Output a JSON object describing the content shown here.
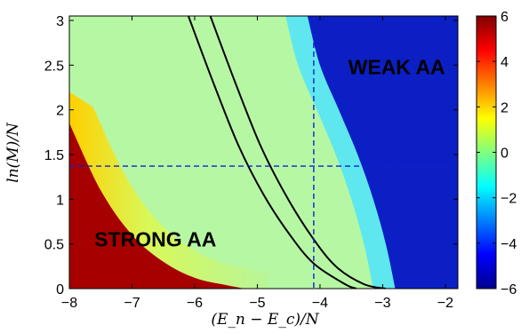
{
  "chart_data": {
    "type": "heatmap",
    "xlabel": "(E_n − E_c)/N",
    "ylabel": "ln(M)/N",
    "xlim": [
      -8,
      -1.8
    ],
    "ylim": [
      0,
      3.05
    ],
    "x_ticks": [
      "−8",
      "−7",
      "−6",
      "−5",
      "−4",
      "−3",
      "−2"
    ],
    "y_ticks": [
      "0",
      "0.5",
      "1",
      "1.5",
      "2",
      "2.5",
      "3"
    ],
    "colorbar": {
      "range": [
        -6,
        6
      ],
      "ticks": [
        "6",
        "4",
        "2",
        "0",
        "−2",
        "−4",
        "−6"
      ],
      "colormap": "jet"
    },
    "annotations": [
      {
        "text": "STRONG AA",
        "x": -7.6,
        "y": 0.55
      },
      {
        "text": "WEAK AA",
        "x": -3.55,
        "y": 2.48
      }
    ],
    "regions": {
      "strong_aa_boundary": [
        [
          -8,
          1.85
        ],
        [
          -7.5,
          1.1
        ],
        [
          -7,
          0.6
        ],
        [
          -6.5,
          0.3
        ],
        [
          -6,
          0.12
        ],
        [
          -5.5,
          0.04
        ],
        [
          -5.2,
          0
        ]
      ],
      "weak_aa_boundary": [
        [
          -4.2,
          3.05
        ],
        [
          -4.0,
          2.5
        ],
        [
          -3.7,
          2.0
        ],
        [
          -3.4,
          1.5
        ],
        [
          -3.15,
          1.0
        ],
        [
          -2.95,
          0.5
        ],
        [
          -2.8,
          0
        ]
      ]
    },
    "series": [
      {
        "values": [
          [
            -6.1,
            3.05
          ],
          [
            -5.7,
            2.3
          ],
          [
            -5.3,
            1.6
          ],
          [
            -4.9,
            1.05
          ],
          [
            -4.5,
            0.62
          ],
          [
            -4.1,
            0.28
          ],
          [
            -3.6,
            0.05
          ],
          [
            -3.42,
            0
          ]
        ]
      },
      {
        "values": [
          [
            -5.75,
            3.05
          ],
          [
            -5.35,
            2.3
          ],
          [
            -4.95,
            1.6
          ],
          [
            -4.55,
            1.05
          ],
          [
            -4.15,
            0.6
          ],
          [
            -3.75,
            0.25
          ],
          [
            -3.3,
            0.05
          ],
          [
            -2.95,
            0
          ]
        ]
      }
    ],
    "reference_lines": {
      "vertical_x": -4.1,
      "horizontal_y": 1.37
    },
    "grid": false
  }
}
